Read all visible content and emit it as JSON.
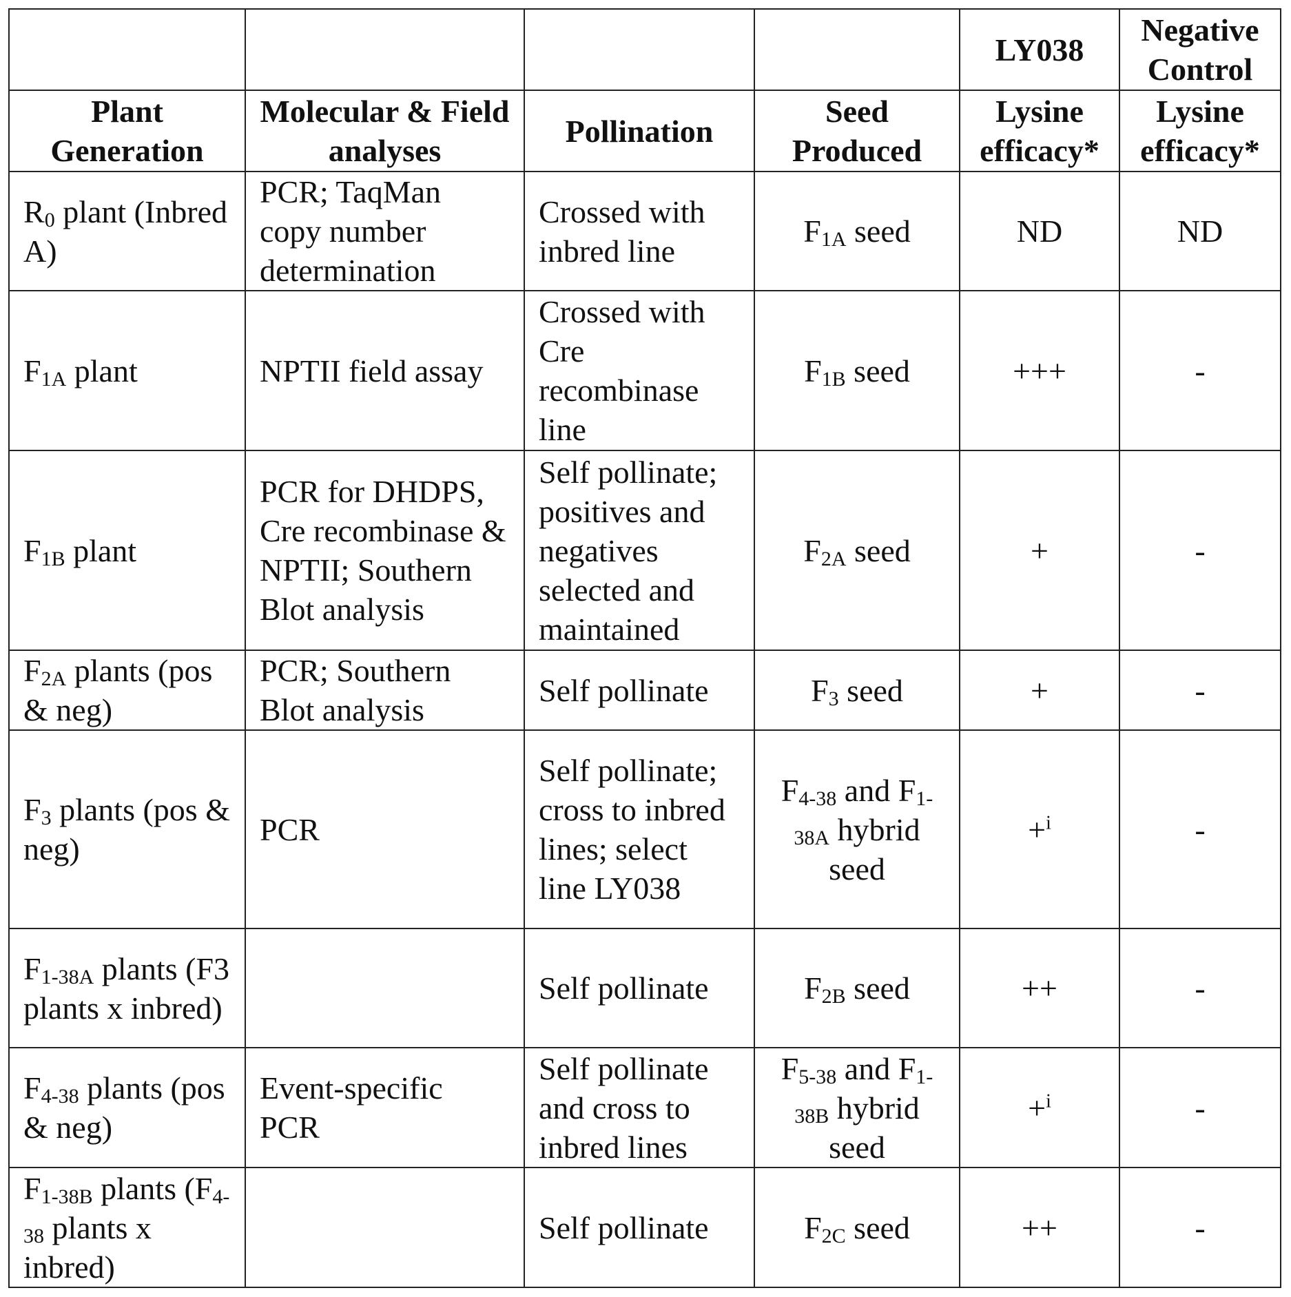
{
  "top_header": [
    "",
    "",
    "",
    "",
    "LY038",
    "Negative Control"
  ],
  "columns": [
    "Plant Generation",
    "Molecular & Field analyses",
    "Pollination",
    "Seed Produced",
    "Lysine efficacy*",
    "Lysine efficacy*"
  ],
  "rows": [
    {
      "gen": [
        "R",
        "0",
        " plant (Inbred A)"
      ],
      "analysis": "PCR; TaqMan copy number determination",
      "pollination": "Crossed with inbred line",
      "seed": [
        "F",
        "1A",
        " seed"
      ],
      "ly038": "ND",
      "ly038_sup": "",
      "neg": "ND"
    },
    {
      "gen": [
        "F",
        "1A",
        " plant"
      ],
      "analysis": "NPTII field assay",
      "pollination": "Crossed with Cre recombinase line",
      "seed": [
        "F",
        "1B",
        " seed"
      ],
      "ly038": "+++",
      "ly038_sup": "",
      "neg": "-"
    },
    {
      "gen": [
        "F",
        "1B",
        " plant"
      ],
      "analysis": "PCR for DHDPS, Cre recombinase & NPTII; Southern Blot analysis",
      "pollination": "Self pollinate; positives and negatives selected and maintained",
      "seed": [
        "F",
        "2A",
        " seed"
      ],
      "ly038": "+",
      "ly038_sup": "",
      "neg": "-"
    },
    {
      "gen": [
        "F",
        "2A",
        " plants (pos & neg)"
      ],
      "analysis": "PCR; Southern Blot analysis",
      "pollination": "Self pollinate",
      "seed": [
        "F",
        "3",
        " seed"
      ],
      "ly038": "+",
      "ly038_sup": "",
      "neg": "-"
    },
    {
      "gen": [
        "F",
        "3",
        " plants (pos & neg)"
      ],
      "analysis": "PCR",
      "pollination": "Self pollinate; cross to inbred lines; select line LY038",
      "seed": [
        "F",
        "4-38",
        " and F",
        "1-38A",
        " hybrid seed"
      ],
      "ly038": "+",
      "ly038_sup": "i",
      "neg": "-"
    },
    {
      "gen": [
        "F",
        "1-38A",
        " plants (F3 plants x inbred)"
      ],
      "analysis": "",
      "pollination": "Self pollinate",
      "seed": [
        "F",
        "2B",
        " seed"
      ],
      "ly038": "++",
      "ly038_sup": "",
      "neg": "-"
    },
    {
      "gen": [
        "F",
        "4-38",
        " plants (pos & neg)"
      ],
      "analysis": "Event-specific PCR",
      "pollination": "Self pollinate and cross to inbred lines",
      "seed": [
        "F",
        "5-38",
        " and F",
        "1-38B",
        " hybrid seed"
      ],
      "ly038": "+",
      "ly038_sup": "i",
      "neg": "-"
    },
    {
      "gen": [
        "F",
        "1-38B",
        " plants (F",
        "4-38",
        "  plants x inbred)"
      ],
      "analysis": "",
      "pollination": "Self pollinate",
      "seed": [
        "F",
        "2C",
        " seed"
      ],
      "ly038": "++",
      "ly038_sup": "",
      "neg": "-"
    }
  ]
}
